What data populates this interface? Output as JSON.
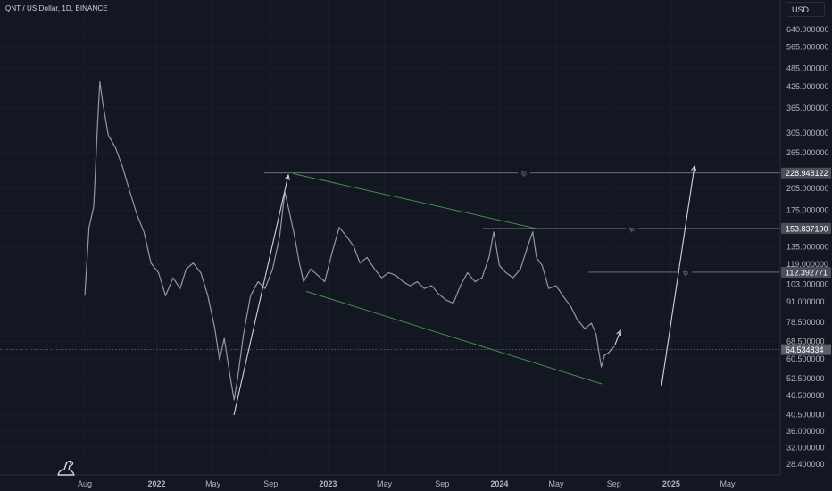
{
  "header": {
    "title": "QNT / US Dollar, 1D, BINANCE"
  },
  "currency": "USD",
  "icons": {
    "logo": "tradingview-dino-icon"
  },
  "colors": {
    "background": "#131722",
    "price_line": "#9598a1",
    "channel": "#4caf50",
    "tp_line": "#787b86",
    "arrow": "#d1d4dc",
    "label_text": "#b2b5be",
    "price_tag_bg": "#4a4e59"
  },
  "chart_data": {
    "type": "line",
    "title": "QNT / US Dollar, 1D, BINANCE",
    "xlabel": "",
    "ylabel": "",
    "scale": "log",
    "ylim": [
      25,
      800
    ],
    "y_ticks": [
      "640.000000",
      "565.000000",
      "485.000000",
      "425.000000",
      "365.000000",
      "305.000000",
      "265.000000",
      "205.000000",
      "175.000000",
      "135.000000",
      "119.000000",
      "103.000000",
      "91.000000",
      "78.500000",
      "68.500000",
      "60.500000",
      "52.500000",
      "46.500000",
      "40.500000",
      "36.000000",
      "32.000000",
      "28.400000"
    ],
    "x_ticks": [
      "Aug",
      "2022",
      "May",
      "Sep",
      "2023",
      "May",
      "Sep",
      "2024",
      "May",
      "Sep",
      "2025",
      "May"
    ],
    "series": [
      {
        "points": [
          [
            "2021-08-01",
            95
          ],
          [
            "2021-08-10",
            155
          ],
          [
            "2021-08-20",
            180
          ],
          [
            "2021-08-28",
            320
          ],
          [
            "2021-09-02",
            440
          ],
          [
            "2021-09-08",
            380
          ],
          [
            "2021-09-20",
            300
          ],
          [
            "2021-10-05",
            275
          ],
          [
            "2021-10-20",
            240
          ],
          [
            "2021-11-05",
            200
          ],
          [
            "2021-11-20",
            170
          ],
          [
            "2021-12-05",
            150
          ],
          [
            "2021-12-20",
            120
          ],
          [
            "2022-01-05",
            112
          ],
          [
            "2022-01-20",
            95
          ],
          [
            "2022-02-05",
            108
          ],
          [
            "2022-02-20",
            100
          ],
          [
            "2022-03-05",
            115
          ],
          [
            "2022-03-20",
            120
          ],
          [
            "2022-04-05",
            112
          ],
          [
            "2022-04-20",
            95
          ],
          [
            "2022-05-05",
            75
          ],
          [
            "2022-05-15",
            60
          ],
          [
            "2022-05-25",
            70
          ],
          [
            "2022-06-05",
            55
          ],
          [
            "2022-06-15",
            45
          ],
          [
            "2022-06-22",
            52
          ],
          [
            "2022-07-05",
            72
          ],
          [
            "2022-07-20",
            95
          ],
          [
            "2022-08-05",
            105
          ],
          [
            "2022-08-20",
            100
          ],
          [
            "2022-09-05",
            115
          ],
          [
            "2022-09-20",
            145
          ],
          [
            "2022-10-01",
            200
          ],
          [
            "2022-10-10",
            175
          ],
          [
            "2022-10-20",
            150
          ],
          [
            "2022-11-01",
            120
          ],
          [
            "2022-11-10",
            105
          ],
          [
            "2022-11-25",
            115
          ],
          [
            "2022-12-10",
            110
          ],
          [
            "2022-12-25",
            105
          ],
          [
            "2023-01-10",
            130
          ],
          [
            "2023-01-25",
            155
          ],
          [
            "2023-02-10",
            145
          ],
          [
            "2023-02-25",
            135
          ],
          [
            "2023-03-10",
            120
          ],
          [
            "2023-03-25",
            125
          ],
          [
            "2023-04-10",
            115
          ],
          [
            "2023-04-25",
            108
          ],
          [
            "2023-05-10",
            112
          ],
          [
            "2023-05-25",
            110
          ],
          [
            "2023-06-10",
            105
          ],
          [
            "2023-06-25",
            102
          ],
          [
            "2023-07-10",
            105
          ],
          [
            "2023-07-25",
            100
          ],
          [
            "2023-08-10",
            102
          ],
          [
            "2023-08-25",
            96
          ],
          [
            "2023-09-10",
            92
          ],
          [
            "2023-09-25",
            90
          ],
          [
            "2023-10-10",
            102
          ],
          [
            "2023-10-25",
            112
          ],
          [
            "2023-11-10",
            105
          ],
          [
            "2023-11-25",
            108
          ],
          [
            "2023-12-10",
            125
          ],
          [
            "2023-12-20",
            150
          ],
          [
            "2024-01-01",
            118
          ],
          [
            "2024-01-15",
            112
          ],
          [
            "2024-01-30",
            108
          ],
          [
            "2024-02-15",
            115
          ],
          [
            "2024-03-01",
            135
          ],
          [
            "2024-03-12",
            150
          ],
          [
            "2024-03-20",
            125
          ],
          [
            "2024-04-01",
            118
          ],
          [
            "2024-04-15",
            100
          ],
          [
            "2024-05-01",
            102
          ],
          [
            "2024-05-15",
            95
          ],
          [
            "2024-06-01",
            88
          ],
          [
            "2024-06-15",
            80
          ],
          [
            "2024-07-01",
            75
          ],
          [
            "2024-07-15",
            78
          ],
          [
            "2024-07-25",
            72
          ],
          [
            "2024-08-05",
            57
          ],
          [
            "2024-08-12",
            62
          ],
          [
            "2024-08-20",
            63
          ],
          [
            "2024-08-28",
            65
          ],
          [
            "2024-09-02",
            66
          ]
        ]
      }
    ],
    "annotations": [
      {
        "label": "tp",
        "price": "228.948122"
      },
      {
        "label": "tp",
        "price": "153.837190"
      },
      {
        "label": "tp",
        "price": "112.392771"
      }
    ],
    "current_price": "64.534834",
    "price_tags": [
      "228.948122",
      "153.837190",
      "112.392771",
      "64.534834"
    ]
  }
}
